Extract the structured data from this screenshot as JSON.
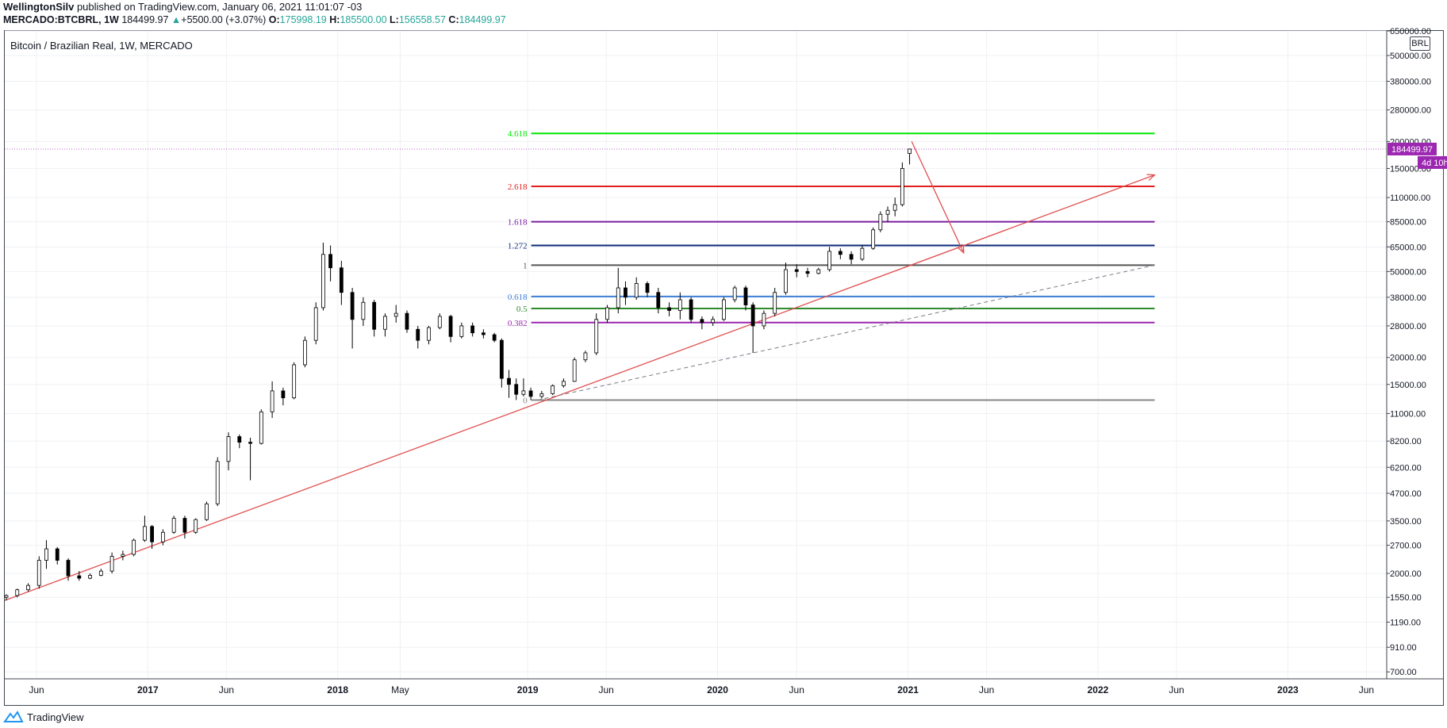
{
  "header": {
    "author": "WellingtonSilv",
    "published_text": "published on TradingView.com, January 06, 2021 11:01:07 -03",
    "symbol_interval": "MERCADO:BTCBRL, 1W",
    "last": "184499.97",
    "change": "+5500.00 (+3.07%)",
    "o_label": "O:",
    "o": "175998.19",
    "h_label": "H:",
    "h": "185500.00",
    "l_label": "L:",
    "l": "156558.57",
    "c_label": "C:",
    "c": "184499.97"
  },
  "chart_title": "Bitcoin / Brazilian Real, 1W, MERCADO",
  "currency_badge": "BRL",
  "price_badge": "184499.97",
  "countdown_badge": "4d 10h",
  "footer_brand": "TradingView",
  "colors": {
    "fib_4618": "#00e600",
    "fib_2618": "#e01e1e",
    "fib_1618": "#7b1fa2",
    "fib_1272": "#0d2b7a",
    "fib_1": "#555555",
    "fib_0618": "#3f7fd6",
    "fib_05": "#2e8b2e",
    "fib_0382": "#9c27b0",
    "fib_0": "#888888",
    "trend": "#e05050",
    "badge": "#9c27b0",
    "accent_up": "#26a69a"
  },
  "chart_data": {
    "type": "candlestick",
    "y_scale": "log",
    "ylim": [
      650,
      650000
    ],
    "xlim": [
      "2016-04-01",
      "2023-07-10"
    ],
    "y_ticks": [
      "650000.00",
      "500000.00",
      "380000.00",
      "280000.00",
      "200000.00",
      "150000.00",
      "110000.00",
      "85000.00",
      "65000.00",
      "50000.00",
      "38000.00",
      "28000.00",
      "20000.00",
      "15000.00",
      "11000.00",
      "8200.00",
      "6200.00",
      "4700.00",
      "3500.00",
      "2700.00",
      "2000.00",
      "1550.00",
      "1190.00",
      "910.00",
      "700.00"
    ],
    "x_ticks": [
      {
        "date": "2016-06-01",
        "label": "Jun"
      },
      {
        "date": "2017-01-01",
        "label": "2017"
      },
      {
        "date": "2017-06-01",
        "label": "Jun"
      },
      {
        "date": "2018-01-01",
        "label": "2018"
      },
      {
        "date": "2018-05-01",
        "label": "May"
      },
      {
        "date": "2019-01-01",
        "label": "2019"
      },
      {
        "date": "2019-06-01",
        "label": "Jun"
      },
      {
        "date": "2020-01-01",
        "label": "2020"
      },
      {
        "date": "2020-06-01",
        "label": "Jun"
      },
      {
        "date": "2021-01-01",
        "label": "2021"
      },
      {
        "date": "2021-06-01",
        "label": "Jun"
      },
      {
        "date": "2022-01-01",
        "label": "2022"
      },
      {
        "date": "2022-06-01",
        "label": "Jun"
      },
      {
        "date": "2023-01-01",
        "label": "2023"
      },
      {
        "date": "2023-06-01",
        "label": "Jun"
      }
    ],
    "fib_levels": [
      {
        "label": "4.618",
        "price": 218000,
        "color": "#00e600"
      },
      {
        "label": "2.618",
        "price": 124000,
        "color": "#e01e1e"
      },
      {
        "label": "1.618",
        "price": 85000,
        "color": "#7b1fa2"
      },
      {
        "label": "1.272",
        "price": 66000,
        "color": "#0d2b7a"
      },
      {
        "label": "1",
        "price": 53500,
        "color": "#555555"
      },
      {
        "label": "0.618",
        "price": 38300,
        "color": "#3f7fd6"
      },
      {
        "label": "0.5",
        "price": 33700,
        "color": "#2e8b2e"
      },
      {
        "label": "0.382",
        "price": 29000,
        "color": "#9c27b0"
      },
      {
        "label": "0",
        "price": 12700,
        "color": "#888888"
      }
    ],
    "fib_start": "2018-11-20",
    "fib_end": "2022-04-20",
    "trend_line": {
      "p1": {
        "date": "2016-04-01",
        "price": 1500
      },
      "p2": {
        "date": "2022-04-20",
        "price": 140000
      }
    },
    "dashed_line": {
      "p1": {
        "date": "2019-01-20",
        "price": 12700
      },
      "p2": {
        "date": "2022-04-20",
        "price": 53500
      }
    },
    "arrow": {
      "p1": {
        "date": "2021-01-08",
        "price": 200000
      },
      "p2": {
        "date": "2021-04-18",
        "price": 61000
      }
    },
    "last_price": 184499.97,
    "candles": [
      {
        "d": "2016-04-04",
        "o": 1550,
        "h": 1600,
        "l": 1500,
        "c": 1580
      },
      {
        "d": "2016-04-25",
        "o": 1580,
        "h": 1700,
        "l": 1550,
        "c": 1680
      },
      {
        "d": "2016-05-16",
        "o": 1680,
        "h": 1800,
        "l": 1650,
        "c": 1760
      },
      {
        "d": "2016-06-06",
        "o": 1760,
        "h": 2400,
        "l": 1700,
        "c": 2300
      },
      {
        "d": "2016-06-20",
        "o": 2300,
        "h": 2850,
        "l": 2100,
        "c": 2600
      },
      {
        "d": "2016-07-11",
        "o": 2600,
        "h": 2650,
        "l": 2200,
        "c": 2300
      },
      {
        "d": "2016-08-01",
        "o": 2300,
        "h": 2350,
        "l": 1850,
        "c": 1950
      },
      {
        "d": "2016-08-22",
        "o": 1950,
        "h": 2050,
        "l": 1850,
        "c": 1900
      },
      {
        "d": "2016-09-12",
        "o": 1900,
        "h": 2000,
        "l": 1880,
        "c": 1960
      },
      {
        "d": "2016-10-03",
        "o": 1960,
        "h": 2100,
        "l": 1940,
        "c": 2050
      },
      {
        "d": "2016-10-24",
        "o": 2050,
        "h": 2500,
        "l": 2000,
        "c": 2400
      },
      {
        "d": "2016-11-14",
        "o": 2400,
        "h": 2550,
        "l": 2300,
        "c": 2450
      },
      {
        "d": "2016-12-05",
        "o": 2450,
        "h": 2900,
        "l": 2400,
        "c": 2850
      },
      {
        "d": "2016-12-26",
        "o": 2850,
        "h": 3700,
        "l": 2800,
        "c": 3300
      },
      {
        "d": "2017-01-09",
        "o": 3300,
        "h": 3350,
        "l": 2600,
        "c": 2800
      },
      {
        "d": "2017-01-30",
        "o": 2800,
        "h": 3200,
        "l": 2700,
        "c": 3100
      },
      {
        "d": "2017-02-20",
        "o": 3100,
        "h": 3700,
        "l": 3050,
        "c": 3600
      },
      {
        "d": "2017-03-13",
        "o": 3600,
        "h": 3700,
        "l": 2900,
        "c": 3100
      },
      {
        "d": "2017-04-03",
        "o": 3100,
        "h": 3600,
        "l": 3050,
        "c": 3550
      },
      {
        "d": "2017-04-24",
        "o": 3550,
        "h": 4300,
        "l": 3500,
        "c": 4200
      },
      {
        "d": "2017-05-15",
        "o": 4200,
        "h": 6900,
        "l": 4100,
        "c": 6600
      },
      {
        "d": "2017-06-05",
        "o": 6600,
        "h": 9000,
        "l": 6000,
        "c": 8600
      },
      {
        "d": "2017-06-26",
        "o": 8600,
        "h": 8800,
        "l": 7600,
        "c": 8100
      },
      {
        "d": "2017-07-17",
        "o": 8100,
        "h": 8500,
        "l": 5400,
        "c": 8000
      },
      {
        "d": "2017-08-07",
        "o": 8000,
        "h": 11500,
        "l": 7900,
        "c": 11200
      },
      {
        "d": "2017-08-28",
        "o": 11200,
        "h": 15500,
        "l": 10500,
        "c": 14000
      },
      {
        "d": "2017-09-18",
        "o": 14000,
        "h": 14500,
        "l": 12000,
        "c": 13000
      },
      {
        "d": "2017-10-09",
        "o": 13000,
        "h": 19000,
        "l": 12800,
        "c": 18500
      },
      {
        "d": "2017-10-30",
        "o": 18500,
        "h": 25000,
        "l": 18000,
        "c": 24000
      },
      {
        "d": "2017-11-20",
        "o": 24000,
        "h": 36000,
        "l": 23000,
        "c": 34000
      },
      {
        "d": "2017-12-04",
        "o": 34000,
        "h": 68000,
        "l": 33000,
        "c": 60000
      },
      {
        "d": "2017-12-18",
        "o": 60000,
        "h": 66000,
        "l": 45000,
        "c": 52000
      },
      {
        "d": "2018-01-08",
        "o": 52000,
        "h": 56000,
        "l": 35000,
        "c": 40000
      },
      {
        "d": "2018-01-29",
        "o": 40000,
        "h": 42000,
        "l": 22000,
        "c": 30000
      },
      {
        "d": "2018-02-19",
        "o": 30000,
        "h": 38000,
        "l": 28000,
        "c": 36000
      },
      {
        "d": "2018-03-12",
        "o": 36000,
        "h": 37000,
        "l": 25000,
        "c": 27000
      },
      {
        "d": "2018-04-02",
        "o": 27000,
        "h": 32000,
        "l": 25000,
        "c": 31000
      },
      {
        "d": "2018-04-23",
        "o": 31000,
        "h": 35000,
        "l": 29000,
        "c": 32000
      },
      {
        "d": "2018-05-14",
        "o": 32000,
        "h": 33000,
        "l": 26000,
        "c": 27000
      },
      {
        "d": "2018-06-04",
        "o": 27000,
        "h": 28000,
        "l": 22000,
        "c": 24000
      },
      {
        "d": "2018-06-25",
        "o": 24000,
        "h": 28000,
        "l": 23000,
        "c": 27500
      },
      {
        "d": "2018-07-16",
        "o": 27500,
        "h": 32000,
        "l": 27000,
        "c": 31000
      },
      {
        "d": "2018-08-06",
        "o": 31000,
        "h": 31500,
        "l": 23500,
        "c": 25000
      },
      {
        "d": "2018-08-27",
        "o": 25000,
        "h": 29000,
        "l": 24500,
        "c": 28000
      },
      {
        "d": "2018-09-17",
        "o": 28000,
        "h": 29000,
        "l": 25000,
        "c": 26000
      },
      {
        "d": "2018-10-08",
        "o": 26000,
        "h": 27000,
        "l": 24500,
        "c": 25500
      },
      {
        "d": "2018-10-29",
        "o": 25500,
        "h": 26000,
        "l": 23500,
        "c": 24000
      },
      {
        "d": "2018-11-12",
        "o": 24000,
        "h": 24500,
        "l": 14500,
        "c": 16000
      },
      {
        "d": "2018-11-26",
        "o": 16000,
        "h": 17500,
        "l": 13000,
        "c": 15000
      },
      {
        "d": "2018-12-10",
        "o": 15000,
        "h": 16000,
        "l": 12700,
        "c": 13500
      },
      {
        "d": "2018-12-24",
        "o": 13500,
        "h": 16000,
        "l": 13200,
        "c": 14000
      },
      {
        "d": "2019-01-07",
        "o": 14000,
        "h": 14500,
        "l": 12700,
        "c": 13200
      },
      {
        "d": "2019-01-28",
        "o": 13200,
        "h": 14000,
        "l": 12900,
        "c": 13600
      },
      {
        "d": "2019-02-18",
        "o": 13600,
        "h": 15000,
        "l": 13400,
        "c": 14800
      },
      {
        "d": "2019-03-11",
        "o": 14800,
        "h": 16000,
        "l": 14500,
        "c": 15500
      },
      {
        "d": "2019-04-01",
        "o": 15500,
        "h": 20000,
        "l": 15400,
        "c": 19500
      },
      {
        "d": "2019-04-22",
        "o": 19500,
        "h": 21500,
        "l": 19000,
        "c": 21000
      },
      {
        "d": "2019-05-13",
        "o": 21000,
        "h": 32000,
        "l": 20500,
        "c": 30000
      },
      {
        "d": "2019-06-03",
        "o": 30000,
        "h": 35000,
        "l": 29000,
        "c": 34000
      },
      {
        "d": "2019-06-24",
        "o": 34000,
        "h": 52000,
        "l": 32000,
        "c": 42000
      },
      {
        "d": "2019-07-08",
        "o": 42000,
        "h": 45000,
        "l": 35000,
        "c": 38000
      },
      {
        "d": "2019-07-29",
        "o": 38000,
        "h": 47000,
        "l": 37000,
        "c": 44000
      },
      {
        "d": "2019-08-19",
        "o": 44000,
        "h": 45000,
        "l": 38000,
        "c": 40000
      },
      {
        "d": "2019-09-09",
        "o": 40000,
        "h": 42000,
        "l": 32000,
        "c": 34000
      },
      {
        "d": "2019-09-30",
        "o": 34000,
        "h": 36000,
        "l": 31000,
        "c": 33000
      },
      {
        "d": "2019-10-21",
        "o": 33000,
        "h": 40000,
        "l": 30000,
        "c": 37000
      },
      {
        "d": "2019-11-11",
        "o": 37000,
        "h": 38000,
        "l": 29000,
        "c": 30000
      },
      {
        "d": "2019-12-02",
        "o": 30000,
        "h": 31000,
        "l": 27000,
        "c": 29000
      },
      {
        "d": "2019-12-23",
        "o": 29000,
        "h": 31000,
        "l": 28000,
        "c": 30000
      },
      {
        "d": "2020-01-13",
        "o": 30000,
        "h": 38000,
        "l": 29500,
        "c": 37000
      },
      {
        "d": "2020-02-03",
        "o": 37000,
        "h": 43000,
        "l": 36000,
        "c": 42000
      },
      {
        "d": "2020-02-24",
        "o": 42000,
        "h": 43000,
        "l": 33000,
        "c": 35000
      },
      {
        "d": "2020-03-09",
        "o": 35000,
        "h": 36000,
        "l": 21000,
        "c": 28000
      },
      {
        "d": "2020-03-30",
        "o": 28000,
        "h": 33000,
        "l": 27000,
        "c": 32000
      },
      {
        "d": "2020-04-20",
        "o": 32000,
        "h": 42000,
        "l": 31000,
        "c": 40000
      },
      {
        "d": "2020-05-11",
        "o": 40000,
        "h": 55000,
        "l": 39000,
        "c": 51000
      },
      {
        "d": "2020-06-01",
        "o": 51000,
        "h": 54000,
        "l": 47000,
        "c": 50000
      },
      {
        "d": "2020-06-22",
        "o": 50000,
        "h": 52000,
        "l": 47000,
        "c": 49000
      },
      {
        "d": "2020-07-13",
        "o": 49000,
        "h": 52000,
        "l": 48500,
        "c": 51000
      },
      {
        "d": "2020-08-03",
        "o": 51000,
        "h": 65000,
        "l": 50000,
        "c": 62000
      },
      {
        "d": "2020-08-24",
        "o": 62000,
        "h": 64000,
        "l": 57000,
        "c": 60000
      },
      {
        "d": "2020-09-14",
        "o": 60000,
        "h": 62000,
        "l": 54000,
        "c": 57000
      },
      {
        "d": "2020-10-05",
        "o": 57000,
        "h": 66000,
        "l": 56000,
        "c": 64000
      },
      {
        "d": "2020-10-26",
        "o": 64000,
        "h": 80000,
        "l": 63000,
        "c": 78000
      },
      {
        "d": "2020-11-09",
        "o": 78000,
        "h": 95000,
        "l": 76000,
        "c": 92000
      },
      {
        "d": "2020-11-23",
        "o": 92000,
        "h": 100000,
        "l": 85000,
        "c": 96000
      },
      {
        "d": "2020-12-07",
        "o": 96000,
        "h": 110000,
        "l": 90000,
        "c": 102000
      },
      {
        "d": "2020-12-21",
        "o": 102000,
        "h": 160000,
        "l": 100000,
        "c": 150000
      },
      {
        "d": "2021-01-04",
        "o": 175998.19,
        "h": 185500,
        "l": 156558.57,
        "c": 184499.97
      }
    ]
  }
}
